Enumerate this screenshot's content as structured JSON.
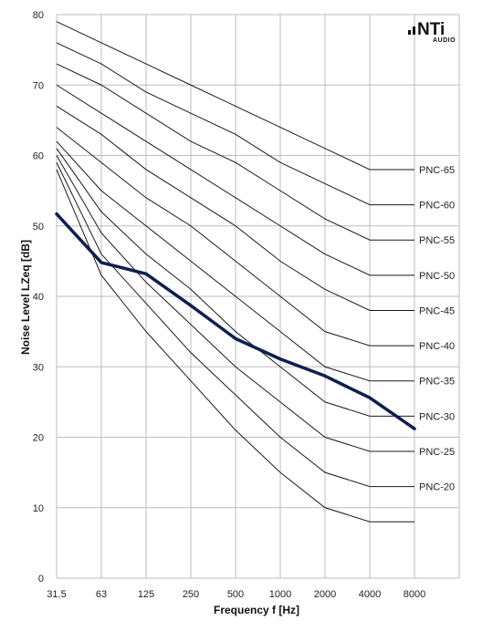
{
  "logo": {
    "brand": "NTi",
    "sub": "AUDIO"
  },
  "chart_data": {
    "type": "line",
    "xlabel": "Frequency f [Hz]",
    "ylabel": "Noise Level LZeq [dB]",
    "x_scale": "log2 (octave bands)",
    "categories": [
      "31.5",
      "63",
      "125",
      "250",
      "500",
      "1000",
      "2000",
      "4000",
      "8000"
    ],
    "ylim": [
      0,
      80
    ],
    "yticks": [
      0,
      10,
      20,
      30,
      40,
      50,
      60,
      70,
      80
    ],
    "grid": true,
    "curves": [
      {
        "name": "PNC-65",
        "values": [
          79,
          76,
          73,
          70,
          67,
          64,
          61,
          58,
          58
        ]
      },
      {
        "name": "PNC-60",
        "values": [
          76,
          73,
          69,
          66,
          63,
          59,
          56,
          53,
          53
        ]
      },
      {
        "name": "PNC-55",
        "values": [
          73,
          70,
          66,
          62,
          59,
          55,
          51,
          48,
          48
        ]
      },
      {
        "name": "PNC-50",
        "values": [
          70,
          66,
          62,
          58,
          54,
          50,
          46,
          43,
          43
        ]
      },
      {
        "name": "PNC-45",
        "values": [
          67,
          63,
          58,
          54,
          50,
          45,
          41,
          38,
          38
        ]
      },
      {
        "name": "PNC-40",
        "values": [
          64,
          59,
          54,
          50,
          45,
          40,
          35,
          33,
          33
        ]
      },
      {
        "name": "PNC-35",
        "values": [
          62,
          55,
          50,
          45,
          40,
          35,
          30,
          28,
          28
        ]
      },
      {
        "name": "PNC-30",
        "values": [
          61,
          52,
          46,
          41,
          35,
          30,
          25,
          23,
          23
        ]
      },
      {
        "name": "PNC-25",
        "values": [
          60,
          49,
          42,
          36,
          30,
          25,
          20,
          18,
          18
        ]
      },
      {
        "name": "PNC-20",
        "values": [
          59,
          46,
          39,
          32,
          26,
          20,
          15,
          13,
          13
        ]
      },
      {
        "name": "",
        "values": [
          58,
          43,
          35,
          28,
          21,
          15,
          10,
          8,
          8
        ]
      }
    ],
    "measurement": {
      "name": "",
      "color": "#0d1f4e",
      "values": [
        51.7,
        44.8,
        43.2,
        38.7,
        34.0,
        31.1,
        28.7,
        25.6,
        21.2
      ]
    }
  }
}
